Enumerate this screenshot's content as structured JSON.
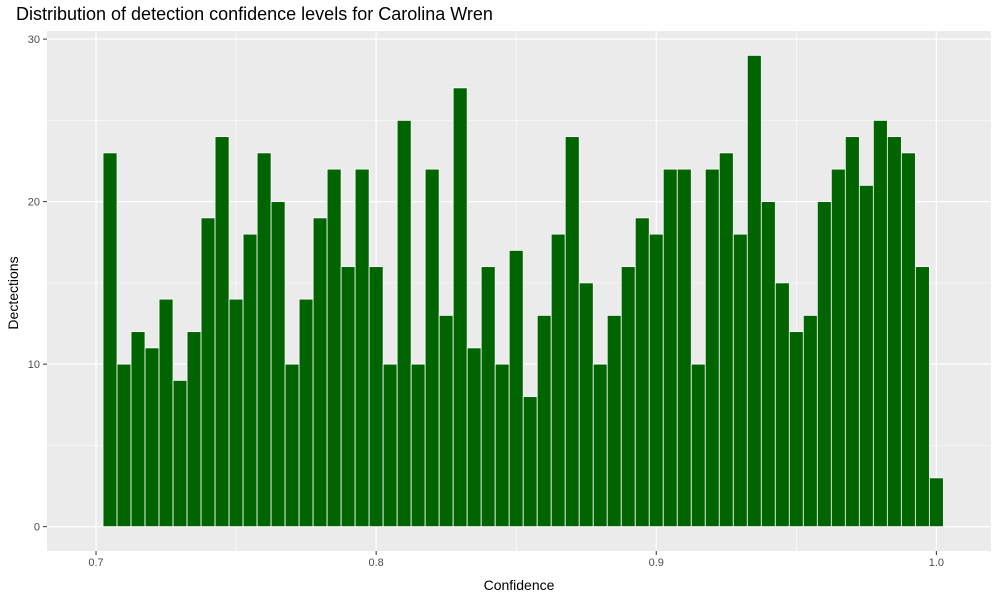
{
  "chart_data": {
    "type": "bar",
    "title": "Distribution of detection confidence levels for Carolina Wren",
    "xlabel": "Confidence",
    "ylabel": "Dectections",
    "xlim": [
      0.6825,
      1.0195
    ],
    "ylim": [
      -1.5,
      30.5
    ],
    "bin_width": 0.005,
    "x_ticks": [
      0.7,
      0.8,
      0.9,
      1.0
    ],
    "x_tick_labels": [
      "0.7",
      "0.8",
      "0.9",
      "1.0"
    ],
    "y_ticks": [
      0,
      10,
      20,
      30
    ],
    "y_tick_labels": [
      "0",
      "10",
      "20",
      "30"
    ],
    "grid": true,
    "bar_color": "#006400",
    "bar_outline": "#ffffff",
    "panel_color": "#ebebeb",
    "x": [
      0.705,
      0.71,
      0.715,
      0.72,
      0.725,
      0.73,
      0.735,
      0.74,
      0.745,
      0.75,
      0.755,
      0.76,
      0.765,
      0.77,
      0.775,
      0.78,
      0.785,
      0.79,
      0.795,
      0.8,
      0.805,
      0.81,
      0.815,
      0.82,
      0.825,
      0.83,
      0.835,
      0.84,
      0.845,
      0.85,
      0.855,
      0.86,
      0.865,
      0.87,
      0.875,
      0.88,
      0.885,
      0.89,
      0.895,
      0.9,
      0.905,
      0.91,
      0.915,
      0.92,
      0.925,
      0.93,
      0.935,
      0.94,
      0.945,
      0.95,
      0.955,
      0.96,
      0.965,
      0.97,
      0.975,
      0.98,
      0.985,
      0.99,
      0.995,
      1.0
    ],
    "values": [
      23,
      10,
      12,
      11,
      14,
      9,
      12,
      19,
      24,
      14,
      18,
      23,
      20,
      10,
      14,
      19,
      22,
      16,
      22,
      16,
      10,
      25,
      10,
      22,
      13,
      27,
      11,
      16,
      10,
      17,
      8,
      13,
      18,
      24,
      15,
      10,
      13,
      16,
      19,
      18,
      22,
      22,
      10,
      22,
      23,
      18,
      29,
      20,
      15,
      12,
      13,
      20,
      22,
      24,
      21,
      25,
      24,
      23,
      16,
      3
    ]
  }
}
